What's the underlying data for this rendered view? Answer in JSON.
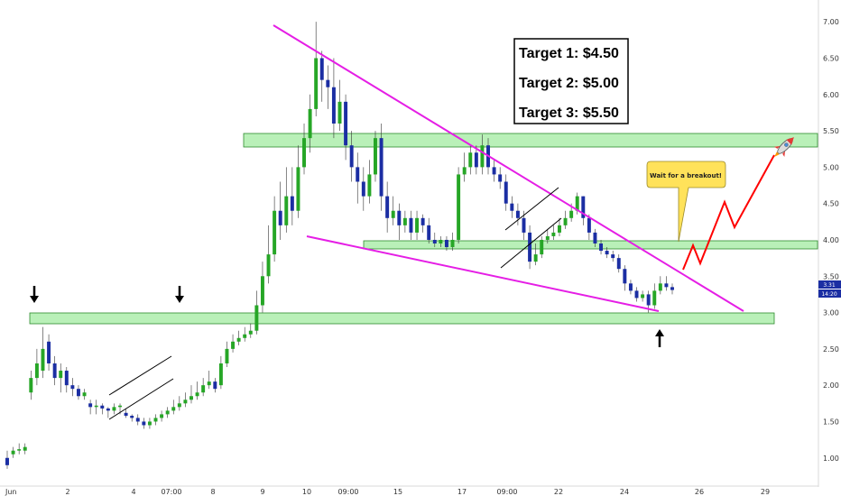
{
  "chart_data": {
    "type": "candlestick",
    "ylim": [
      0.6,
      7.3
    ],
    "y_ticks": [
      "1.00",
      "1.50",
      "2.00",
      "2.50",
      "3.00",
      "3.50",
      "4.00",
      "4.50",
      "5.00",
      "5.50",
      "6.00",
      "6.50",
      "7.00"
    ],
    "x_ticks": [
      "Jun",
      "2",
      "4",
      "07:00",
      "8",
      "9",
      "10",
      "09:00",
      "15",
      "17",
      "09:00",
      "22",
      "24",
      "26",
      "29"
    ],
    "price_badges": [
      "3.31",
      "14:20"
    ],
    "targets": [
      "Target 1: $4.50",
      "Target 2: $5.00",
      "Target 3: $5.50"
    ],
    "callout": "Wait for a breakout!",
    "zones": [
      {
        "name": "support-zone",
        "low": 2.79,
        "high": 2.95
      },
      {
        "name": "breakout-zone",
        "low": 3.83,
        "high": 3.95
      },
      {
        "name": "resistance-zone",
        "low": 5.3,
        "high": 5.52
      }
    ],
    "candles": [
      [
        1.0,
        0.9,
        1.1,
        0.85
      ],
      [
        1.05,
        1.1,
        1.15,
        1.0
      ],
      [
        1.1,
        1.12,
        1.2,
        1.05
      ],
      [
        1.1,
        1.15,
        1.2,
        1.05
      ],
      [
        1.9,
        2.1,
        2.2,
        1.8
      ],
      [
        2.1,
        2.3,
        2.5,
        2.0
      ],
      [
        2.2,
        2.5,
        2.8,
        2.1
      ],
      [
        2.6,
        2.3,
        2.7,
        2.2
      ],
      [
        2.3,
        2.1,
        2.4,
        2.0
      ],
      [
        2.1,
        2.2,
        2.3,
        1.9
      ],
      [
        2.2,
        2.0,
        2.25,
        1.9
      ],
      [
        2.0,
        1.95,
        2.1,
        1.85
      ],
      [
        1.95,
        1.85,
        2.0,
        1.8
      ],
      [
        1.85,
        1.9,
        1.95,
        1.8
      ],
      [
        1.75,
        1.7,
        1.8,
        1.6
      ],
      [
        1.7,
        1.72,
        1.8,
        1.6
      ],
      [
        1.72,
        1.68,
        1.75,
        1.6
      ],
      [
        1.68,
        1.65,
        1.7,
        1.55
      ],
      [
        1.65,
        1.7,
        1.75,
        1.6
      ],
      [
        1.7,
        1.72,
        1.75,
        1.6
      ],
      [
        1.62,
        1.58,
        1.68,
        1.55
      ],
      [
        1.58,
        1.55,
        1.6,
        1.5
      ],
      [
        1.55,
        1.5,
        1.6,
        1.45
      ],
      [
        1.5,
        1.45,
        1.55,
        1.4
      ],
      [
        1.45,
        1.5,
        1.55,
        1.4
      ],
      [
        1.5,
        1.55,
        1.6,
        1.45
      ],
      [
        1.55,
        1.6,
        1.65,
        1.5
      ],
      [
        1.6,
        1.65,
        1.7,
        1.55
      ],
      [
        1.65,
        1.7,
        1.8,
        1.6
      ],
      [
        1.7,
        1.75,
        1.85,
        1.65
      ],
      [
        1.75,
        1.8,
        1.9,
        1.7
      ],
      [
        1.8,
        1.85,
        2.0,
        1.75
      ],
      [
        1.85,
        1.9,
        2.05,
        1.8
      ],
      [
        1.9,
        2.0,
        2.1,
        1.85
      ],
      [
        2.0,
        2.05,
        2.2,
        1.95
      ],
      [
        2.05,
        1.95,
        2.1,
        1.9
      ],
      [
        2.0,
        2.3,
        2.4,
        1.95
      ],
      [
        2.3,
        2.5,
        2.6,
        2.25
      ],
      [
        2.5,
        2.6,
        2.7,
        2.45
      ],
      [
        2.6,
        2.65,
        2.75,
        2.55
      ],
      [
        2.65,
        2.7,
        2.8,
        2.6
      ],
      [
        2.7,
        2.75,
        2.85,
        2.65
      ],
      [
        2.75,
        3.1,
        3.3,
        2.7
      ],
      [
        3.1,
        3.5,
        3.7,
        3.0
      ],
      [
        3.5,
        3.8,
        4.2,
        3.4
      ],
      [
        3.8,
        4.4,
        4.6,
        3.7
      ],
      [
        4.4,
        4.2,
        4.8,
        4.0
      ],
      [
        4.2,
        4.6,
        5.0,
        4.1
      ],
      [
        4.6,
        4.4,
        5.0,
        4.2
      ],
      [
        4.4,
        5.0,
        5.3,
        4.3
      ],
      [
        5.0,
        5.4,
        5.6,
        4.9
      ],
      [
        5.4,
        5.8,
        6.0,
        5.2
      ],
      [
        5.8,
        6.5,
        7.0,
        5.7
      ],
      [
        6.5,
        6.2,
        6.6,
        5.9
      ],
      [
        6.2,
        6.1,
        6.4,
        5.8
      ],
      [
        6.1,
        5.6,
        6.5,
        5.4
      ],
      [
        5.6,
        5.9,
        6.2,
        5.5
      ],
      [
        5.9,
        5.3,
        6.0,
        5.1
      ],
      [
        5.3,
        5.0,
        5.5,
        4.8
      ],
      [
        5.0,
        4.8,
        5.2,
        4.5
      ],
      [
        4.8,
        4.6,
        5.0,
        4.4
      ],
      [
        4.6,
        4.9,
        5.1,
        4.5
      ],
      [
        4.9,
        5.4,
        5.5,
        4.8
      ],
      [
        5.4,
        4.6,
        5.6,
        4.4
      ],
      [
        4.6,
        4.3,
        4.8,
        4.1
      ],
      [
        4.3,
        4.4,
        4.6,
        4.2
      ],
      [
        4.4,
        4.2,
        4.5,
        4.0
      ],
      [
        4.2,
        4.3,
        4.4,
        4.1
      ],
      [
        4.3,
        4.1,
        4.4,
        4.0
      ],
      [
        4.1,
        4.3,
        4.4,
        4.0
      ],
      [
        4.3,
        4.2,
        4.35,
        4.1
      ],
      [
        4.2,
        4.0,
        4.3,
        3.95
      ],
      [
        4.0,
        3.95,
        4.1,
        3.9
      ],
      [
        3.95,
        4.0,
        4.05,
        3.9
      ],
      [
        4.0,
        3.9,
        4.05,
        3.85
      ],
      [
        3.9,
        4.0,
        4.1,
        3.85
      ],
      [
        4.0,
        4.9,
        5.0,
        3.95
      ],
      [
        4.9,
        5.0,
        5.2,
        4.8
      ],
      [
        5.0,
        5.2,
        5.3,
        4.9
      ],
      [
        5.2,
        5.0,
        5.3,
        4.9
      ],
      [
        5.0,
        5.3,
        5.45,
        4.9
      ],
      [
        5.3,
        5.0,
        5.4,
        4.9
      ],
      [
        5.0,
        4.9,
        5.1,
        4.8
      ],
      [
        4.9,
        4.8,
        5.0,
        4.7
      ],
      [
        4.8,
        4.5,
        4.9,
        4.4
      ],
      [
        4.5,
        4.4,
        4.6,
        4.3
      ],
      [
        4.4,
        4.3,
        4.5,
        4.2
      ],
      [
        4.3,
        4.1,
        4.4,
        4.0
      ],
      [
        4.1,
        3.7,
        4.2,
        3.6
      ],
      [
        3.7,
        3.8,
        3.95,
        3.65
      ],
      [
        3.8,
        4.0,
        4.05,
        3.75
      ],
      [
        4.0,
        4.05,
        4.15,
        3.95
      ],
      [
        4.05,
        4.1,
        4.2,
        4.0
      ],
      [
        4.1,
        4.2,
        4.3,
        4.05
      ],
      [
        4.2,
        4.3,
        4.4,
        4.15
      ],
      [
        4.3,
        4.4,
        4.5,
        4.25
      ],
      [
        4.4,
        4.6,
        4.65,
        4.35
      ],
      [
        4.6,
        4.3,
        4.6,
        4.2
      ],
      [
        4.3,
        4.1,
        4.35,
        4.0
      ],
      [
        4.1,
        3.95,
        4.15,
        3.9
      ],
      [
        3.95,
        3.85,
        4.0,
        3.8
      ],
      [
        3.85,
        3.8,
        3.9,
        3.75
      ],
      [
        3.8,
        3.75,
        3.85,
        3.7
      ],
      [
        3.75,
        3.6,
        3.8,
        3.55
      ],
      [
        3.6,
        3.4,
        3.65,
        3.3
      ],
      [
        3.4,
        3.3,
        3.45,
        3.25
      ],
      [
        3.3,
        3.2,
        3.35,
        3.15
      ],
      [
        3.2,
        3.25,
        3.3,
        3.15
      ],
      [
        3.25,
        3.1,
        3.3,
        3.0
      ],
      [
        3.1,
        3.3,
        3.4,
        3.05
      ],
      [
        3.3,
        3.4,
        3.5,
        3.25
      ],
      [
        3.4,
        3.35,
        3.5,
        3.3
      ],
      [
        3.35,
        3.31,
        3.4,
        3.25
      ]
    ]
  }
}
